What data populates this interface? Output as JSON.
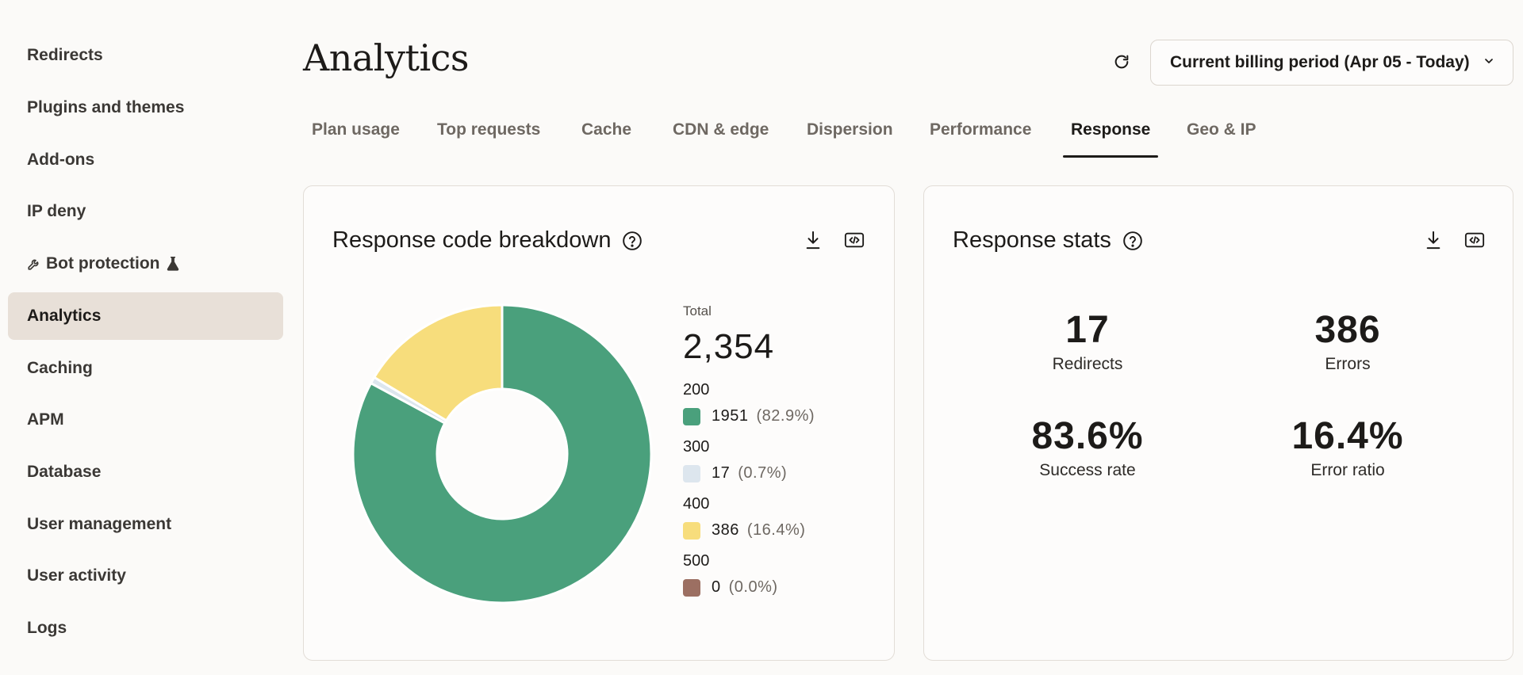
{
  "sidebar": {
    "items": [
      {
        "label": "Redirects"
      },
      {
        "label": "Plugins and themes"
      },
      {
        "label": "Add-ons"
      },
      {
        "label": "IP deny"
      },
      {
        "label": "Bot protection"
      },
      {
        "label": "Analytics"
      },
      {
        "label": "Caching"
      },
      {
        "label": "APM"
      },
      {
        "label": "Database"
      },
      {
        "label": "User management"
      },
      {
        "label": "User activity"
      },
      {
        "label": "Logs"
      }
    ],
    "active": "Analytics",
    "bot_protection_icons": [
      "wrench-icon",
      "flask-icon"
    ]
  },
  "header": {
    "title": "Analytics",
    "period_select": {
      "value": "Current billing period (Apr 05 - Today)"
    }
  },
  "tabs": [
    {
      "label": "Plan usage"
    },
    {
      "label": "Top requests"
    },
    {
      "label": "Cache"
    },
    {
      "label": "CDN & edge"
    },
    {
      "label": "Dispersion"
    },
    {
      "label": "Performance"
    },
    {
      "label": "Response"
    },
    {
      "label": "Geo & IP"
    }
  ],
  "active_tab": "Response",
  "response_breakdown": {
    "title": "Response code breakdown",
    "total_label": "Total",
    "total_value": "2,354",
    "codes": [
      {
        "code": "200",
        "count": "1951",
        "pct": "(82.9%)",
        "color": "#4aa07c"
      },
      {
        "code": "300",
        "count": "17",
        "pct": "(0.7%)",
        "color": "#dde6ee"
      },
      {
        "code": "400",
        "count": "386",
        "pct": "(16.4%)",
        "color": "#f7dd7c"
      },
      {
        "code": "500",
        "count": "0",
        "pct": "(0.0%)",
        "color": "#9c6f62"
      }
    ]
  },
  "chart_data": {
    "type": "pie",
    "categories": [
      "200",
      "300",
      "400",
      "500"
    ],
    "values": [
      1951,
      17,
      386,
      0
    ],
    "colors": [
      "#4aa07c",
      "#dde6ee",
      "#f7dd7c",
      "#9c6f62"
    ],
    "donut": true,
    "legend": "right"
  },
  "response_stats": {
    "title": "Response stats",
    "stats": [
      {
        "value": "17",
        "label": "Redirects"
      },
      {
        "value": "386",
        "label": "Errors"
      },
      {
        "value": "83.6%",
        "label": "Success rate"
      },
      {
        "value": "16.4%",
        "label": "Error ratio"
      }
    ]
  },
  "icons": {
    "refresh": "refresh-icon",
    "chevron": "chevron-down-icon",
    "help": "help-icon",
    "download": "download-icon",
    "embed": "code-icon"
  }
}
